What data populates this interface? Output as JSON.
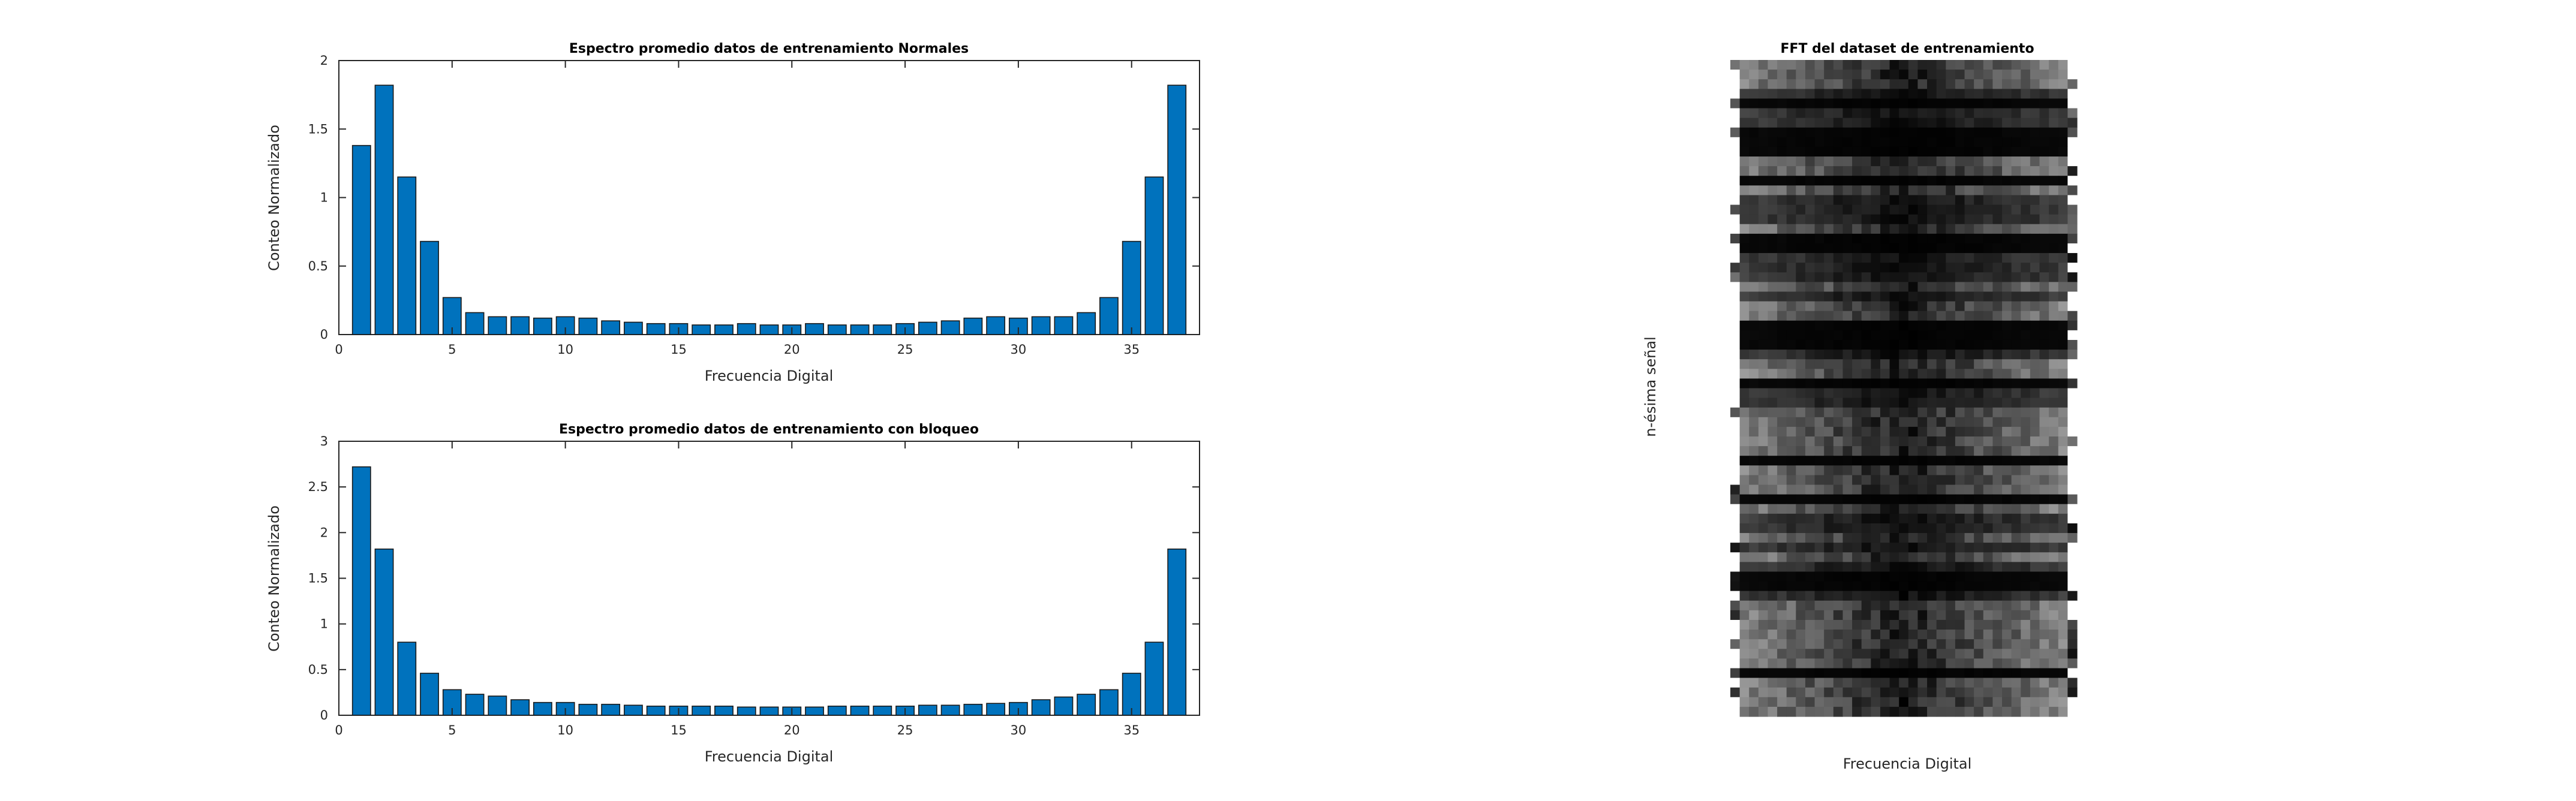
{
  "chart_data": [
    {
      "type": "bar",
      "title": "Espectro promedio datos de entrenamiento Normales",
      "xlabel": "Frecuencia Digital",
      "ylabel": "Conteo Normalizado",
      "xlim": [
        0,
        38
      ],
      "ylim": [
        0,
        2
      ],
      "xticks": [
        0,
        5,
        10,
        15,
        20,
        25,
        30,
        35
      ],
      "yticks": [
        0,
        0.5,
        1,
        1.5,
        2
      ],
      "ytick_labels": [
        "0",
        "0.5",
        "1",
        "1.5",
        "2"
      ],
      "x": [
        1,
        2,
        3,
        4,
        5,
        6,
        7,
        8,
        9,
        10,
        11,
        12,
        13,
        14,
        15,
        16,
        17,
        18,
        19,
        20,
        21,
        22,
        23,
        24,
        25,
        26,
        27,
        28,
        29,
        30,
        31,
        32,
        33,
        34,
        35,
        36,
        37
      ],
      "values": [
        1.38,
        1.82,
        1.15,
        0.68,
        0.27,
        0.16,
        0.13,
        0.13,
        0.12,
        0.13,
        0.12,
        0.1,
        0.09,
        0.08,
        0.08,
        0.07,
        0.07,
        0.08,
        0.07,
        0.07,
        0.08,
        0.07,
        0.07,
        0.07,
        0.08,
        0.09,
        0.1,
        0.12,
        0.13,
        0.12,
        0.13,
        0.13,
        0.16,
        0.27,
        0.68,
        1.15,
        1.82
      ],
      "color": "#0072BD",
      "grid": false
    },
    {
      "type": "bar",
      "title": "Espectro promedio datos de entrenamiento con bloqueo",
      "xlabel": "Frecuencia Digital",
      "ylabel": "Conteo Normalizado",
      "xlim": [
        0,
        38
      ],
      "ylim": [
        0,
        3
      ],
      "xticks": [
        0,
        5,
        10,
        15,
        20,
        25,
        30,
        35
      ],
      "yticks": [
        0,
        0.5,
        1,
        1.5,
        2,
        2.5,
        3
      ],
      "ytick_labels": [
        "0",
        "0.5",
        "1",
        "1.5",
        "2",
        "2.5",
        "3"
      ],
      "x": [
        1,
        2,
        3,
        4,
        5,
        6,
        7,
        8,
        9,
        10,
        11,
        12,
        13,
        14,
        15,
        16,
        17,
        18,
        19,
        20,
        21,
        22,
        23,
        24,
        25,
        26,
        27,
        28,
        29,
        30,
        31,
        32,
        33,
        34,
        35,
        36,
        37
      ],
      "values": [
        2.72,
        1.82,
        0.8,
        0.46,
        0.28,
        0.23,
        0.21,
        0.17,
        0.14,
        0.14,
        0.12,
        0.12,
        0.11,
        0.1,
        0.1,
        0.1,
        0.1,
        0.09,
        0.09,
        0.09,
        0.09,
        0.1,
        0.1,
        0.1,
        0.1,
        0.11,
        0.11,
        0.12,
        0.13,
        0.14,
        0.17,
        0.2,
        0.23,
        0.28,
        0.46,
        0.8,
        1.82
      ],
      "color": "#0072BD",
      "grid": false
    },
    {
      "type": "heatmap",
      "title": "FFT del dataset de entrenamiento",
      "xlabel": "Frecuencia Digital",
      "ylabel": "n-ésima señal",
      "colormap": "gray",
      "columns": 37,
      "rows": 68,
      "axes_visible": false
    }
  ]
}
